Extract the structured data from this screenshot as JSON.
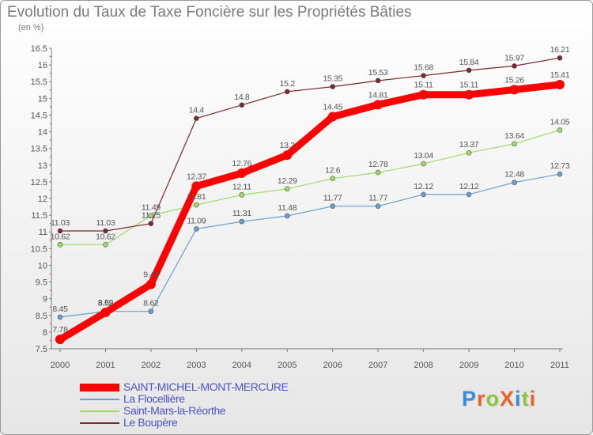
{
  "title": "Evolution du Taux de Taxe Foncière sur les Propriétés Bâties",
  "unit_label": "(en %)",
  "logo": {
    "text": "ProXiti",
    "letter_colors": [
      "#3a8bd6",
      "#e8642a",
      "#8cc63e",
      "#e8642a",
      "#3a8bd6",
      "#8cc63e",
      "#e8642a"
    ]
  },
  "chart_data": {
    "type": "line",
    "title": "Evolution du Taux de Taxe Foncière sur les Propriétés Bâties",
    "ylabel": "(en %)",
    "xlabel": "",
    "x": [
      "2000",
      "2001",
      "2002",
      "2003",
      "2004",
      "2005",
      "2006",
      "2007",
      "2008",
      "2009",
      "2010",
      "2011"
    ],
    "ylim": [
      7.5,
      16.5
    ],
    "yticks": [
      "7.5",
      "8",
      "8.5",
      "9",
      "9.5",
      "10",
      "10.5",
      "11",
      "11.5",
      "12",
      "12.5",
      "13",
      "13.5",
      "14",
      "14.5",
      "15",
      "15.5",
      "16",
      "16.5"
    ],
    "grid": false,
    "legend_position": "bottom-left",
    "series": [
      {
        "name": "SAINT-MICHEL-MONT-MERCURE",
        "color": "#ff0000",
        "values": [
          7.78,
          8.59,
          9.43,
          12.37,
          12.76,
          13.3,
          14.45,
          14.81,
          15.11,
          15.11,
          15.26,
          15.41
        ],
        "labels": [
          "7.78",
          "8.59",
          "9.43",
          "12.37",
          "12.76",
          "13.3",
          "14.45",
          "14.81",
          "15.11",
          "15.11",
          "15.26",
          "15.41"
        ]
      },
      {
        "name": "La Flocellière",
        "color": "#6a9fd4",
        "values": [
          8.45,
          8.62,
          8.62,
          11.09,
          11.31,
          11.48,
          11.77,
          11.77,
          12.12,
          12.12,
          12.48,
          12.73
        ],
        "labels": [
          "8.45",
          "8.62",
          "8.62",
          "11.09",
          "11.31",
          "11.48",
          "11.77",
          "11.77",
          "12.12",
          "12.12",
          "12.48",
          "12.73"
        ]
      },
      {
        "name": "Saint-Mars-la-Réorthe",
        "color": "#99dd66",
        "values": [
          10.62,
          10.62,
          11.49,
          11.81,
          12.11,
          12.29,
          12.6,
          12.78,
          13.04,
          13.37,
          13.64,
          14.05
        ],
        "labels": [
          "10.62",
          "10.62",
          "11.49",
          "11.81",
          "12.11",
          "12.29",
          "12.6",
          "12.78",
          "13.04",
          "13.37",
          "13.64",
          "14.05"
        ]
      },
      {
        "name": "Le Boupère",
        "color": "#7a2828",
        "values": [
          11.03,
          11.03,
          11.25,
          14.4,
          14.8,
          15.2,
          15.35,
          15.53,
          15.68,
          15.84,
          15.97,
          16.21
        ],
        "labels": [
          "11.03",
          "11.03",
          "11.25",
          "14.4",
          "14.8",
          "15.2",
          "15.35",
          "15.53",
          "15.68",
          "15.84",
          "15.97",
          "16.21"
        ]
      }
    ]
  }
}
